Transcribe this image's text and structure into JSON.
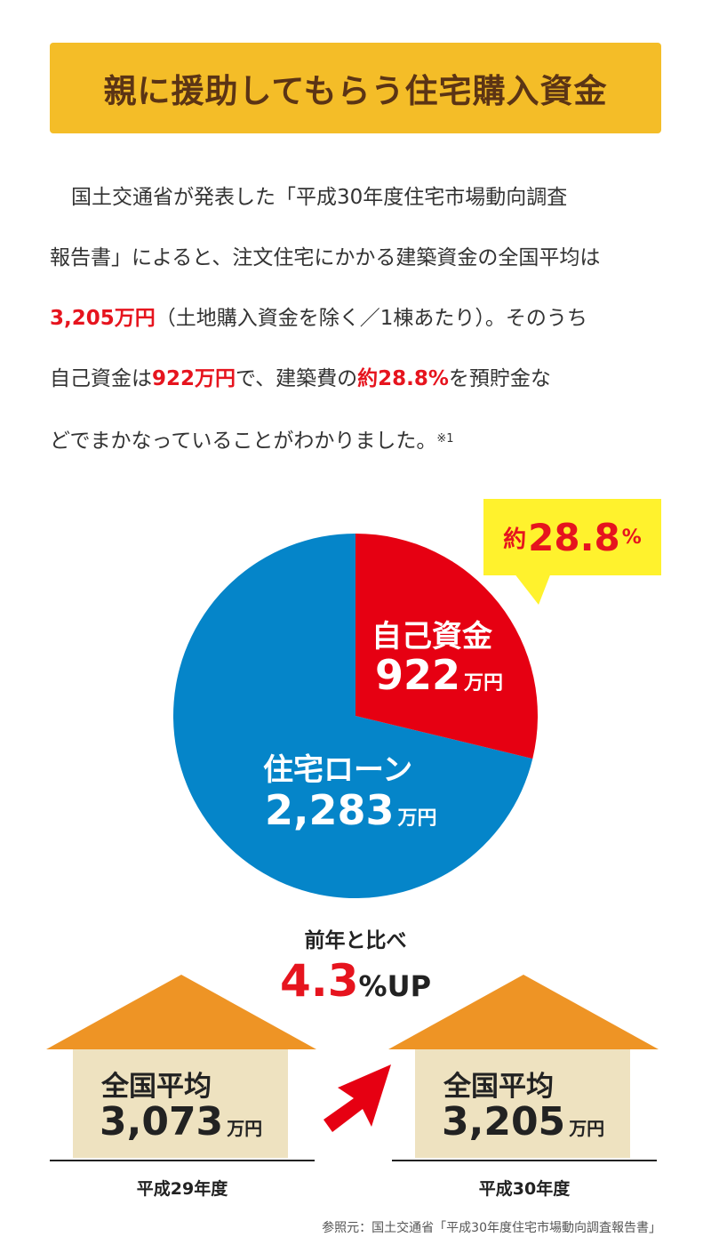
{
  "title": "親に援助してもらう住宅購入資金",
  "body": {
    "line1": "国土交通省が発表した「平成30年度住宅市場動向調査",
    "line2": "報告書」によると、注文住宅にかかる建築資金の全国平均は",
    "line3_em": "3,205万円",
    "line3_rest": "（土地購入資金を除く／1棟あたり）。そのうち",
    "line4_a": "自己資金は",
    "line4_em1": "922万円",
    "line4_b": "で、建築費の",
    "line4_em2": "約28.8%",
    "line4_c": "を預貯金な",
    "line5": "どでまかなっていることがわかりました。",
    "footnote": "※1"
  },
  "bubble": {
    "prefix": "約",
    "number": "28.8",
    "unit": "%"
  },
  "pie": {
    "self": {
      "label": "自己資金",
      "value": "922",
      "unit": "万円",
      "color": "#e60012"
    },
    "loan": {
      "label": "住宅ローン",
      "value": "2,283",
      "unit": "万円",
      "color": "#0585c9"
    }
  },
  "chart_data": {
    "type": "pie",
    "categories": [
      "自己資金",
      "住宅ローン"
    ],
    "values": [
      922,
      2283
    ],
    "colors": [
      "#e60012",
      "#0585c9"
    ]
  },
  "comparison": {
    "label": "前年と比べ",
    "value": "4.3",
    "unit": "%UP"
  },
  "houses": [
    {
      "avg_label": "全国平均",
      "value": "3,073",
      "unit": "万円",
      "year": "平成29年度"
    },
    {
      "avg_label": "全国平均",
      "value": "3,205",
      "unit": "万円",
      "year": "平成30年度"
    }
  ],
  "source": "参照元：国土交通省「平成30年度住宅市場動向調査報告書」",
  "colors": {
    "banner": "#f4bd28",
    "title": "#5b3415",
    "accent": "#e6141e",
    "roof": "#ee9425",
    "wall": "#eee2c0",
    "bubble": "#fff22d",
    "arrow": "#e60012"
  }
}
